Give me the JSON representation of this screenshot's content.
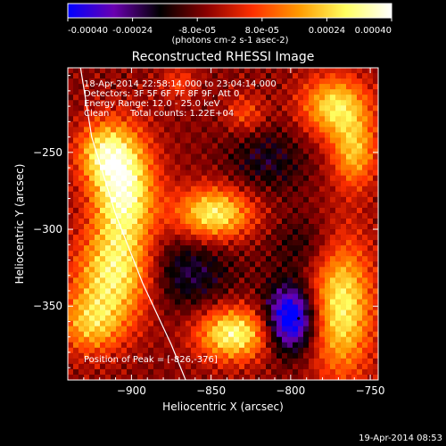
{
  "colorbar": {
    "tick_labels": [
      "-0.00040",
      "-0.00024",
      "-8.0e-05",
      "8.0e-05",
      "0.00024",
      "0.00040"
    ],
    "tick_values": [
      -0.0004,
      -0.00024,
      -8e-05,
      8e-05,
      0.00024,
      0.0004
    ],
    "range": [
      -0.0004,
      0.0004
    ],
    "units_label": "(photons cm-2 s-1 asec-2)",
    "stops": [
      "#0000ff",
      "#6a00b0",
      "#000000",
      "#8a0000",
      "#ff3000",
      "#ff9a00",
      "#ffff60",
      "#ffffff"
    ]
  },
  "chart_data": {
    "type": "heatmap",
    "title": "Reconstructed RHESSI Image",
    "xlabel": "Heliocentric X (arcsec)",
    "ylabel": "Heliocentric Y (arcsec)",
    "xlim": [
      -940,
      -745
    ],
    "ylim": [
      -398,
      -195
    ],
    "xticks": [
      -900,
      -850,
      -800,
      -750
    ],
    "yticks": [
      -250,
      -300,
      -350
    ],
    "info": {
      "time_range": "18-Apr-2014 22:58:14.000 to 23:04:14.000",
      "detectors": "Detectors: 3F 5F 6F 7F 8F 9F, Att 0",
      "energy": "Energy Range: 12.0 - 25.0 keV",
      "method": "Clean",
      "counts": "Total counts: 1.22E+04"
    },
    "peak": {
      "label": "Position of Peak = [-826,-376]",
      "x": -826,
      "y": -376
    },
    "limb": [
      [
        -932,
        -195
      ],
      [
        -925,
        -240
      ],
      [
        -910,
        -290
      ],
      [
        -893,
        -335
      ],
      [
        -875,
        -375
      ],
      [
        -866,
        -398
      ]
    ],
    "features": [
      {
        "x": -905,
        "y": -275,
        "sx": 14,
        "sy": 26,
        "amp": 0.00042
      },
      {
        "x": -918,
        "y": -250,
        "sx": 12,
        "sy": 14,
        "amp": 0.00025
      },
      {
        "x": -910,
        "y": -330,
        "sx": 18,
        "sy": 20,
        "amp": 0.00034
      },
      {
        "x": -925,
        "y": -362,
        "sx": 15,
        "sy": 14,
        "amp": 0.00025
      },
      {
        "x": -848,
        "y": -290,
        "sx": 17,
        "sy": 12,
        "amp": 0.00036
      },
      {
        "x": -836,
        "y": -368,
        "sx": 16,
        "sy": 12,
        "amp": 0.00038
      },
      {
        "x": -772,
        "y": -220,
        "sx": 15,
        "sy": 14,
        "amp": 0.00032
      },
      {
        "x": -760,
        "y": -250,
        "sx": 10,
        "sy": 16,
        "amp": 0.00026
      },
      {
        "x": -768,
        "y": -350,
        "sx": 14,
        "sy": 32,
        "amp": 0.00035
      },
      {
        "x": -828,
        "y": -225,
        "sx": 9,
        "sy": 9,
        "amp": 0.00014
      },
      {
        "x": -870,
        "y": -205,
        "sx": 8,
        "sy": 8,
        "amp": 0.00012
      },
      {
        "x": -800,
        "y": -358,
        "sx": 11,
        "sy": 15,
        "amp": -0.00042
      },
      {
        "x": -815,
        "y": -255,
        "sx": 18,
        "sy": 16,
        "amp": -0.00012
      },
      {
        "x": -868,
        "y": -328,
        "sx": 22,
        "sy": 18,
        "amp": -0.00016
      },
      {
        "x": -790,
        "y": -310,
        "sx": 16,
        "sy": 14,
        "amp": -0.0001
      }
    ]
  },
  "timestamp": "19-Apr-2014 08:53"
}
